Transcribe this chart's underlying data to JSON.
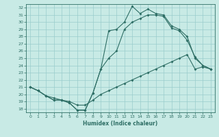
{
  "xlabel": "Humidex (Indice chaleur)",
  "background_color": "#c8eae5",
  "grid_color": "#99cccc",
  "line_color": "#2e6e65",
  "xlim": [
    -0.5,
    23.5
  ],
  "ylim": [
    17.5,
    32.5
  ],
  "xticks": [
    0,
    1,
    2,
    3,
    4,
    5,
    6,
    7,
    8,
    9,
    10,
    11,
    12,
    13,
    14,
    15,
    16,
    17,
    18,
    19,
    20,
    21,
    22,
    23
  ],
  "yticks": [
    18,
    19,
    20,
    21,
    22,
    23,
    24,
    25,
    26,
    27,
    28,
    29,
    30,
    31,
    32
  ],
  "line1_x": [
    0,
    1,
    2,
    3,
    4,
    5,
    6,
    7,
    8,
    9,
    10,
    11,
    12,
    13,
    14,
    15,
    16,
    17,
    18,
    19,
    20,
    21,
    22,
    23
  ],
  "line1_y": [
    21.0,
    20.5,
    19.8,
    19.2,
    19.2,
    18.8,
    17.8,
    17.8,
    20.2,
    23.5,
    28.8,
    29.0,
    30.0,
    32.2,
    31.2,
    31.8,
    31.2,
    31.0,
    29.5,
    29.0,
    28.0,
    25.0,
    24.0,
    23.5
  ],
  "line2_x": [
    0,
    1,
    2,
    3,
    4,
    5,
    6,
    7,
    8,
    9,
    10,
    11,
    12,
    13,
    14,
    15,
    16,
    17,
    18,
    19,
    20,
    21,
    22,
    23
  ],
  "line2_y": [
    21.0,
    20.5,
    19.8,
    19.2,
    19.2,
    18.8,
    17.8,
    17.8,
    20.2,
    23.5,
    25.0,
    26.0,
    29.0,
    30.0,
    30.5,
    31.0,
    31.0,
    30.8,
    29.2,
    28.8,
    27.5,
    25.2,
    24.0,
    23.5
  ],
  "line3_x": [
    0,
    1,
    2,
    3,
    4,
    5,
    6,
    7,
    8,
    9,
    10,
    11,
    12,
    13,
    14,
    15,
    16,
    17,
    18,
    19,
    20,
    21,
    22,
    23
  ],
  "line3_y": [
    21.0,
    20.5,
    19.8,
    19.5,
    19.2,
    19.0,
    18.5,
    18.5,
    19.2,
    20.0,
    20.5,
    21.0,
    21.5,
    22.0,
    22.5,
    23.0,
    23.5,
    24.0,
    24.5,
    25.0,
    25.5,
    23.5,
    23.8,
    23.5
  ]
}
